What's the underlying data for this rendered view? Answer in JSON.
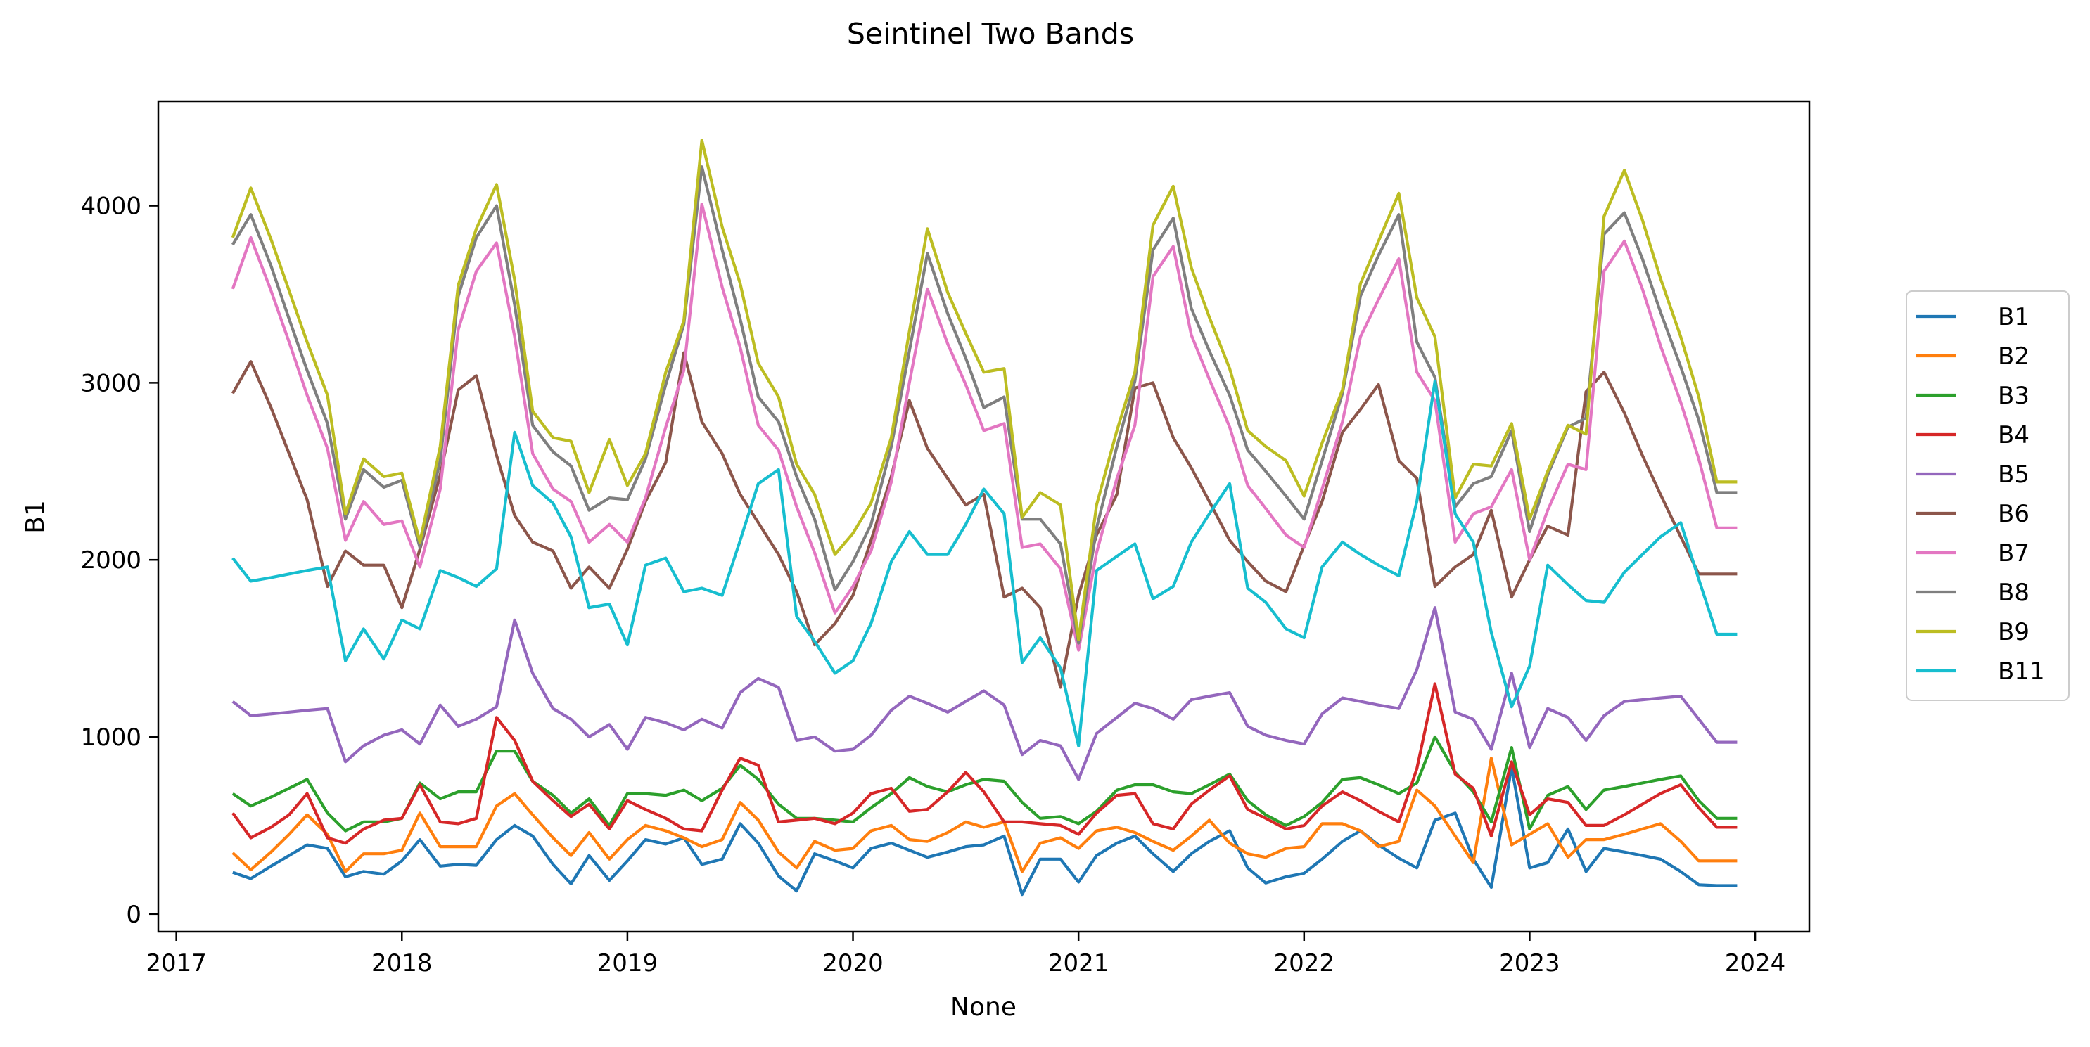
{
  "chart_data": {
    "type": "line",
    "title": "Seintinel Two Bands",
    "xlabel": "None",
    "ylabel": "B1",
    "xlim": [
      2016.92,
      2024.24
    ],
    "ylim": [
      -100,
      4590
    ],
    "x_ticks": [
      2017,
      2018,
      2019,
      2020,
      2021,
      2022,
      2023,
      2024
    ],
    "x_tick_labels": [
      "2017",
      "2018",
      "2019",
      "2020",
      "2021",
      "2022",
      "2023",
      "2024"
    ],
    "y_ticks": [
      0,
      1000,
      2000,
      3000,
      4000
    ],
    "y_tick_labels": [
      "0",
      "1000",
      "2000",
      "3000",
      "4000"
    ],
    "grid": false,
    "legend_position": "right-outside",
    "x": [
      2017.25,
      2017.33,
      2017.42,
      2017.5,
      2017.58,
      2017.67,
      2017.75,
      2017.83,
      2017.92,
      2018.0,
      2018.08,
      2018.17,
      2018.25,
      2018.33,
      2018.42,
      2018.5,
      2018.58,
      2018.67,
      2018.75,
      2018.83,
      2018.92,
      2019.0,
      2019.08,
      2019.17,
      2019.25,
      2019.33,
      2019.42,
      2019.5,
      2019.58,
      2019.67,
      2019.75,
      2019.83,
      2019.92,
      2020.0,
      2020.08,
      2020.17,
      2020.25,
      2020.33,
      2020.42,
      2020.5,
      2020.58,
      2020.67,
      2020.75,
      2020.83,
      2020.92,
      2021.0,
      2021.08,
      2021.17,
      2021.25,
      2021.33,
      2021.42,
      2021.5,
      2021.58,
      2021.67,
      2021.75,
      2021.83,
      2021.92,
      2022.0,
      2022.08,
      2022.17,
      2022.25,
      2022.33,
      2022.42,
      2022.5,
      2022.58,
      2022.67,
      2022.75,
      2022.83,
      2022.92,
      2023.0,
      2023.08,
      2023.17,
      2023.25,
      2023.33,
      2023.42,
      2023.5,
      2023.58,
      2023.67,
      2023.75,
      2023.83,
      2023.92
    ],
    "series": [
      {
        "name": "B1",
        "color": "#1f77b4",
        "values": [
          235,
          200,
          270,
          330,
          390,
          370,
          210,
          240,
          225,
          300,
          420,
          270,
          280,
          275,
          420,
          500,
          440,
          280,
          170,
          330,
          190,
          300,
          420,
          395,
          430,
          280,
          310,
          510,
          400,
          215,
          130,
          340,
          300,
          260,
          370,
          400,
          360,
          320,
          350,
          380,
          390,
          440,
          110,
          310,
          310,
          180,
          330,
          400,
          440,
          340,
          240,
          340,
          410,
          470,
          260,
          175,
          210,
          230,
          310,
          410,
          470,
          390,
          315,
          260,
          530,
          570,
          310,
          150,
          830,
          260,
          290,
          480,
          240,
          370,
          350,
          330,
          310,
          240,
          165,
          160,
          160
        ]
      },
      {
        "name": "B2",
        "color": "#ff7f0e",
        "values": [
          345,
          250,
          350,
          450,
          560,
          450,
          240,
          340,
          340,
          360,
          570,
          380,
          380,
          380,
          610,
          680,
          560,
          430,
          330,
          460,
          310,
          420,
          500,
          470,
          430,
          380,
          420,
          630,
          530,
          350,
          260,
          410,
          360,
          370,
          470,
          500,
          420,
          410,
          460,
          520,
          490,
          520,
          240,
          400,
          430,
          370,
          470,
          490,
          460,
          410,
          360,
          440,
          530,
          400,
          340,
          320,
          370,
          380,
          510,
          510,
          470,
          380,
          410,
          700,
          610,
          440,
          290,
          880,
          390,
          450,
          510,
          320,
          420,
          420,
          450,
          480,
          510,
          410,
          300,
          300,
          300
        ]
      },
      {
        "name": "B3",
        "color": "#2ca02c",
        "values": [
          680,
          610,
          660,
          710,
          760,
          570,
          470,
          520,
          520,
          540,
          740,
          650,
          690,
          690,
          920,
          920,
          750,
          670,
          570,
          650,
          500,
          680,
          680,
          670,
          700,
          640,
          710,
          840,
          760,
          620,
          540,
          540,
          530,
          520,
          600,
          680,
          770,
          720,
          690,
          730,
          760,
          750,
          630,
          540,
          550,
          510,
          580,
          700,
          730,
          730,
          690,
          680,
          730,
          790,
          640,
          560,
          500,
          550,
          630,
          760,
          770,
          730,
          680,
          740,
          1000,
          800,
          690,
          520,
          940,
          480,
          670,
          720,
          590,
          700,
          720,
          740,
          760,
          780,
          640,
          540,
          540
        ]
      },
      {
        "name": "B4",
        "color": "#d62728",
        "values": [
          570,
          430,
          490,
          560,
          680,
          430,
          400,
          480,
          530,
          540,
          730,
          520,
          510,
          540,
          1110,
          980,
          750,
          640,
          550,
          620,
          480,
          640,
          590,
          540,
          480,
          470,
          700,
          880,
          840,
          520,
          530,
          540,
          510,
          570,
          680,
          710,
          580,
          590,
          690,
          800,
          690,
          520,
          520,
          510,
          500,
          450,
          570,
          670,
          680,
          510,
          480,
          620,
          700,
          780,
          590,
          540,
          480,
          500,
          610,
          690,
          640,
          580,
          520,
          820,
          1300,
          790,
          710,
          440,
          860,
          560,
          650,
          630,
          500,
          500,
          560,
          620,
          680,
          730,
          600,
          490,
          490
        ]
      },
      {
        "name": "B5",
        "color": "#9467bd",
        "values": [
          1200,
          1120,
          1130,
          1140,
          1150,
          1160,
          860,
          950,
          1010,
          1040,
          960,
          1180,
          1060,
          1100,
          1170,
          1660,
          1360,
          1160,
          1100,
          1000,
          1070,
          930,
          1110,
          1080,
          1040,
          1100,
          1050,
          1250,
          1330,
          1280,
          980,
          1000,
          920,
          930,
          1010,
          1150,
          1230,
          1190,
          1140,
          1200,
          1260,
          1180,
          900,
          980,
          950,
          760,
          1020,
          1110,
          1190,
          1160,
          1100,
          1210,
          1230,
          1250,
          1060,
          1010,
          980,
          960,
          1130,
          1220,
          1200,
          1180,
          1160,
          1380,
          1730,
          1140,
          1100,
          930,
          1360,
          940,
          1160,
          1110,
          980,
          1120,
          1200,
          1210,
          1220,
          1230,
          1100,
          970,
          970
        ]
      },
      {
        "name": "B6",
        "color": "#8c564b",
        "values": [
          2940,
          3120,
          2860,
          2600,
          2340,
          1850,
          2050,
          1970,
          1970,
          1730,
          2060,
          2480,
          2960,
          3040,
          2590,
          2250,
          2100,
          2050,
          1840,
          1960,
          1840,
          2060,
          2330,
          2550,
          3170,
          2780,
          2600,
          2370,
          2210,
          2030,
          1820,
          1520,
          1640,
          1800,
          2110,
          2470,
          2900,
          2630,
          2460,
          2310,
          2370,
          1790,
          1840,
          1730,
          1280,
          1800,
          2140,
          2370,
          2970,
          3000,
          2690,
          2520,
          2330,
          2110,
          1990,
          1880,
          1820,
          2080,
          2330,
          2720,
          2850,
          2990,
          2560,
          2460,
          1850,
          1960,
          2030,
          2280,
          1790,
          2000,
          2190,
          2140,
          2950,
          3060,
          2830,
          2590,
          2370,
          2130,
          1920,
          1920,
          1920
        ]
      },
      {
        "name": "B7",
        "color": "#e377c2",
        "values": [
          3530,
          3820,
          3520,
          3230,
          2930,
          2630,
          2110,
          2330,
          2200,
          2220,
          1960,
          2400,
          3300,
          3630,
          3790,
          3260,
          2600,
          2400,
          2330,
          2100,
          2200,
          2100,
          2350,
          2750,
          3070,
          4010,
          3540,
          3200,
          2760,
          2620,
          2300,
          2040,
          1700,
          1850,
          2050,
          2440,
          3000,
          3530,
          3220,
          2990,
          2730,
          2770,
          2070,
          2090,
          1950,
          1490,
          2040,
          2460,
          2760,
          3600,
          3770,
          3270,
          3020,
          2750,
          2420,
          2290,
          2140,
          2070,
          2400,
          2780,
          3260,
          3470,
          3700,
          3060,
          2900,
          2100,
          2260,
          2300,
          2510,
          2000,
          2280,
          2540,
          2510,
          3630,
          3800,
          3530,
          3210,
          2890,
          2570,
          2180,
          2180
        ]
      },
      {
        "name": "B8",
        "color": "#7f7f7f",
        "values": [
          3780,
          3950,
          3660,
          3360,
          3070,
          2770,
          2230,
          2510,
          2410,
          2450,
          2070,
          2560,
          3490,
          3820,
          4000,
          3440,
          2760,
          2610,
          2530,
          2280,
          2350,
          2340,
          2570,
          2990,
          3330,
          4220,
          3750,
          3360,
          2920,
          2780,
          2470,
          2230,
          1830,
          1990,
          2200,
          2640,
          3180,
          3730,
          3390,
          3140,
          2860,
          2920,
          2230,
          2230,
          2090,
          1530,
          2180,
          2640,
          3010,
          3750,
          3930,
          3420,
          3180,
          2930,
          2620,
          2500,
          2360,
          2230,
          2560,
          2940,
          3490,
          3720,
          3950,
          3230,
          3030,
          2300,
          2430,
          2470,
          2730,
          2160,
          2480,
          2750,
          2800,
          3840,
          3960,
          3700,
          3400,
          3090,
          2790,
          2380,
          2380
        ]
      },
      {
        "name": "B9",
        "color": "#bcbd22",
        "values": [
          3820,
          4100,
          3810,
          3520,
          3230,
          2930,
          2260,
          2570,
          2470,
          2490,
          2100,
          2640,
          3550,
          3870,
          4120,
          3580,
          2840,
          2690,
          2670,
          2380,
          2680,
          2420,
          2600,
          3060,
          3350,
          4370,
          3880,
          3560,
          3110,
          2920,
          2540,
          2370,
          2030,
          2150,
          2320,
          2690,
          3290,
          3870,
          3510,
          3280,
          3060,
          3080,
          2240,
          2380,
          2310,
          1550,
          2310,
          2730,
          3060,
          3890,
          4110,
          3650,
          3370,
          3080,
          2730,
          2640,
          2560,
          2360,
          2660,
          2960,
          3560,
          3800,
          4070,
          3480,
          3260,
          2350,
          2540,
          2530,
          2770,
          2230,
          2500,
          2760,
          2710,
          3940,
          4200,
          3920,
          3590,
          3260,
          2920,
          2440,
          2440
        ]
      },
      {
        "name": "B11",
        "color": "#17becf",
        "values": [
          2010,
          1880,
          1900,
          1920,
          1940,
          1960,
          1430,
          1610,
          1440,
          1660,
          1610,
          1940,
          1900,
          1850,
          1950,
          2720,
          2420,
          2320,
          2130,
          1730,
          1750,
          1520,
          1970,
          2010,
          1820,
          1840,
          1800,
          2110,
          2430,
          2510,
          1680,
          1540,
          1360,
          1430,
          1640,
          1990,
          2160,
          2030,
          2030,
          2200,
          2400,
          2260,
          1420,
          1560,
          1390,
          950,
          1940,
          2020,
          2090,
          1780,
          1850,
          2100,
          2260,
          2430,
          1840,
          1760,
          1610,
          1560,
          1960,
          2100,
          2030,
          1970,
          1910,
          2330,
          3010,
          2260,
          2100,
          1590,
          1170,
          1400,
          1970,
          1860,
          1770,
          1760,
          1930,
          2030,
          2130,
          2210,
          1890,
          1580,
          1580
        ]
      }
    ]
  }
}
